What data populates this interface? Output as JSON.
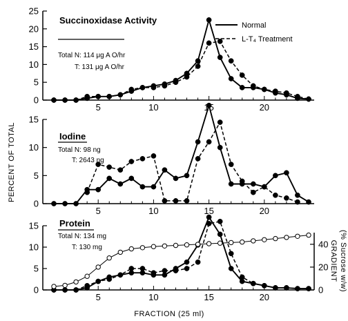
{
  "chart_data": {
    "type": "line",
    "xlabel": "FRACTION (25 ml)",
    "ylabel": "PERCENT OF TOTAL",
    "x_ticks": [
      5,
      10,
      15,
      20
    ],
    "legend": {
      "placement": "top-right",
      "entries": [
        {
          "name": "Normal",
          "style": "solid"
        },
        {
          "name": "L-T₄ Treatment",
          "style": "dashed"
        }
      ]
    },
    "panels": [
      {
        "title": "Succinoxidase Activity",
        "notes": [
          "Total N: 114 μg A O/hr",
          "T: 131 μg A O/hr"
        ],
        "ylim": [
          0,
          25
        ],
        "yticks": [
          0,
          5,
          10,
          15,
          20,
          25
        ],
        "series": [
          {
            "name": "Normal",
            "style": "solid",
            "x": [
              1,
              2,
              3,
              4,
              5,
              6,
              7,
              8,
              9,
              10,
              11,
              12,
              13,
              14,
              15,
              16,
              17,
              18,
              19,
              20,
              21,
              22,
              23,
              24
            ],
            "y": [
              0,
              0,
              0,
              0.5,
              1,
              1,
              1.5,
              2.5,
              3.5,
              4,
              4.5,
              5.5,
              7.5,
              11,
              22.5,
              12,
              6,
              3.5,
              3.5,
              3,
              2,
              1.5,
              0.5,
              0.3
            ]
          },
          {
            "name": "L-T₄ Treatment",
            "style": "dashed",
            "x": [
              1,
              2,
              3,
              4,
              5,
              6,
              7,
              8,
              9,
              10,
              11,
              12,
              13,
              14,
              15,
              16,
              17,
              18,
              19,
              20,
              21,
              22,
              23,
              24
            ],
            "y": [
              0,
              0,
              0,
              1,
              1,
              1,
              1.5,
              3,
              3.5,
              3.5,
              4,
              5,
              6.5,
              9.5,
              16,
              16.5,
              11,
              7,
              4,
              3,
              2.5,
              2,
              1,
              0.3
            ]
          }
        ]
      },
      {
        "title": "Iodine",
        "notes": [
          "Total N: 98 ng",
          "T: 2643 ng"
        ],
        "ylim": [
          0,
          15
        ],
        "yticks": [
          0,
          5,
          10,
          15
        ],
        "series": [
          {
            "name": "Normal",
            "style": "solid",
            "x": [
              1,
              2,
              3,
              4,
              5,
              6,
              7,
              8,
              9,
              10,
              11,
              12,
              13,
              14,
              15,
              16,
              17,
              18,
              19,
              20,
              21,
              22,
              23,
              24
            ],
            "y": [
              0,
              0,
              0,
              2.5,
              2.5,
              4.5,
              3.5,
              4.5,
              3,
              3,
              6,
              4.5,
              5,
              11,
              17.5,
              10,
              3.5,
              3.5,
              3.5,
              3,
              5,
              5.5,
              1.5,
              0.3
            ]
          },
          {
            "name": "L-T₄ Treatment",
            "style": "dashed",
            "x": [
              4,
              5,
              6,
              7,
              8,
              9,
              10,
              11,
              12,
              13,
              14,
              15,
              16,
              17,
              18,
              19,
              20,
              21,
              22,
              23
            ],
            "y": [
              2,
              7,
              6.5,
              6,
              7.5,
              8,
              8.5,
              0.5,
              0.5,
              0.5,
              8,
              11,
              14.5,
              7,
              4,
              2,
              3,
              1.5,
              1,
              0.3
            ]
          }
        ]
      },
      {
        "title": "Protein",
        "notes": [
          "Total N: 134 mg",
          "T: 130 mg"
        ],
        "ylim": [
          0,
          15
        ],
        "yticks": [
          0,
          5,
          10,
          15
        ],
        "series": [
          {
            "name": "Normal",
            "style": "solid",
            "x": [
              1,
              2,
              3,
              4,
              5,
              6,
              7,
              8,
              9,
              10,
              11,
              12,
              13,
              14,
              15,
              16,
              17,
              18,
              19,
              20,
              21,
              22,
              23,
              24
            ],
            "y": [
              0,
              0,
              0,
              0.5,
              2,
              3,
              3.5,
              4,
              4,
              3.5,
              3.5,
              5,
              6.5,
              10.5,
              17,
              13,
              5,
              2,
              1.5,
              1,
              0.5,
              0.5,
              0.3,
              0.3
            ]
          },
          {
            "name": "L-T₄ Treatment",
            "style": "dashed",
            "x": [
              1,
              2,
              3,
              4,
              5,
              6,
              7,
              8,
              9,
              10,
              11,
              12,
              13,
              14,
              15,
              16,
              17,
              18,
              19,
              20,
              21,
              22,
              23,
              24
            ],
            "y": [
              0,
              0,
              0,
              1,
              2,
              2.5,
              3.5,
              5,
              5,
              4,
              4.5,
              4.5,
              5,
              6.5,
              15.5,
              16,
              8.5,
              3,
              1.5,
              1,
              0.5,
              0.5,
              0.3,
              0.3
            ]
          },
          {
            "name": "Gradient",
            "style": "solid-open",
            "axis": "right",
            "x": [
              1,
              2,
              3,
              4,
              5,
              6,
              7,
              8,
              9,
              10,
              11,
              12,
              13,
              14,
              15,
              16,
              17,
              18,
              19,
              20,
              21,
              22,
              23,
              24
            ],
            "y": [
              3,
              4,
              7,
              12,
              20,
              28,
              33,
              36,
              37,
              38,
              38.5,
              39,
              39.5,
              40,
              40.5,
              41,
              41.5,
              42,
              43,
              44,
              45,
              46,
              47,
              48
            ]
          }
        ],
        "right_axis": {
          "label": "GRADIENT",
          "label2": "(% Sucrose w/w)",
          "ylim": [
            0,
            56.25
          ],
          "yticks": [
            0,
            20,
            40
          ]
        }
      }
    ]
  }
}
